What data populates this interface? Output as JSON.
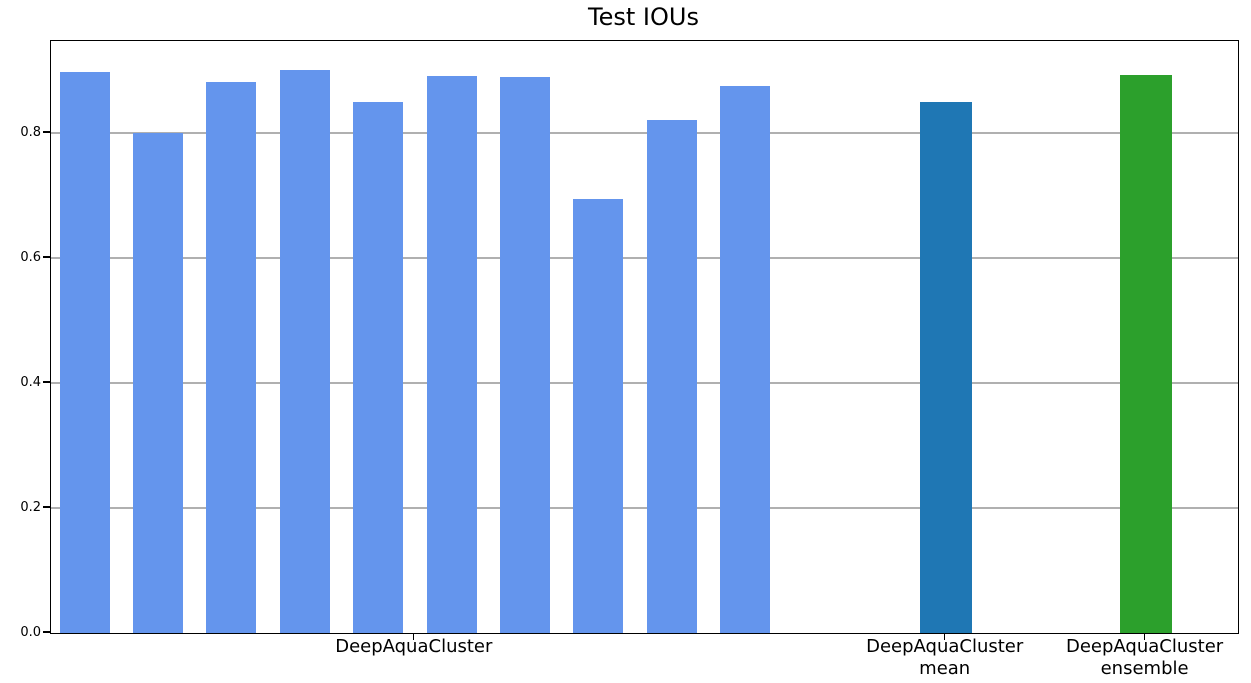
{
  "chart_data": {
    "type": "bar",
    "title": "Test IOUs",
    "xlabel": "",
    "ylabel": "",
    "ylim": [
      0,
      0.9472
    ],
    "ytick_labels": [
      "0.0",
      "0.2",
      "0.4",
      "0.6",
      "0.8"
    ],
    "ytick_values": [
      0.0,
      0.2,
      0.4,
      0.6,
      0.8
    ],
    "grid": "horizontal",
    "gridline_color": "#b0b0b0",
    "legend_position": "none",
    "groups": [
      {
        "label": "DeepAquaCluster",
        "color": "#6495ed",
        "values": [
          0.898,
          0.8,
          0.882,
          0.901,
          0.85,
          0.891,
          0.89,
          0.694,
          0.821,
          0.876
        ]
      },
      {
        "label": "DeepAquaCluster\nmean",
        "color": "#1f77b4",
        "values": [
          0.85
        ]
      },
      {
        "label": "DeepAquaCluster\nensemble",
        "color": "#2ca02c",
        "values": [
          0.893
        ]
      }
    ]
  }
}
